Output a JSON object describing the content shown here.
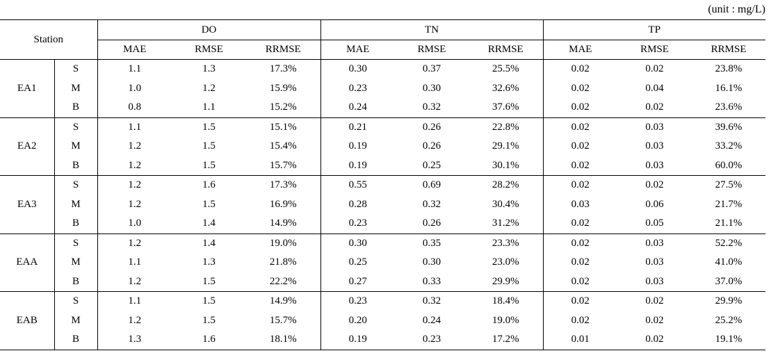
{
  "unit_note": "(unit : mg/L)",
  "table": {
    "header": {
      "station": "Station",
      "groups": [
        "DO",
        "TN",
        "TP"
      ],
      "metrics": [
        [
          "MAE",
          "RMSE",
          "RRMSE"
        ],
        [
          "MAE",
          "RMSE",
          "RRMSE"
        ],
        [
          "MAE",
          "RMSE",
          "RRMSE"
        ]
      ]
    },
    "rows": [
      {
        "station": "EA1",
        "layers": [
          {
            "layer": "S",
            "cells": [
              "1.1",
              "1.3",
              "17.3%",
              "0.30",
              "0.37",
              "25.5%",
              "0.02",
              "0.02",
              "23.8%"
            ]
          },
          {
            "layer": "M",
            "cells": [
              "1.0",
              "1.2",
              "15.9%",
              "0.23",
              "0.30",
              "32.6%",
              "0.02",
              "0.04",
              "16.1%"
            ]
          },
          {
            "layer": "B",
            "cells": [
              "0.8",
              "1.1",
              "15.2%",
              "0.24",
              "0.32",
              "37.6%",
              "0.02",
              "0.02",
              "23.6%"
            ]
          }
        ]
      },
      {
        "station": "EA2",
        "layers": [
          {
            "layer": "S",
            "cells": [
              "1.1",
              "1.5",
              "15.1%",
              "0.21",
              "0.26",
              "22.8%",
              "0.02",
              "0.03",
              "39.6%"
            ]
          },
          {
            "layer": "M",
            "cells": [
              "1.2",
              "1.5",
              "15.4%",
              "0.19",
              "0.26",
              "29.1%",
              "0.02",
              "0.03",
              "33.2%"
            ]
          },
          {
            "layer": "B",
            "cells": [
              "1.2",
              "1.5",
              "15.7%",
              "0.19",
              "0.25",
              "30.1%",
              "0.02",
              "0.03",
              "60.0%"
            ]
          }
        ]
      },
      {
        "station": "EA3",
        "layers": [
          {
            "layer": "S",
            "cells": [
              "1.2",
              "1.6",
              "17.3%",
              "0.55",
              "0.69",
              "28.2%",
              "0.02",
              "0.02",
              "27.5%"
            ]
          },
          {
            "layer": "M",
            "cells": [
              "1.2",
              "1.5",
              "16.9%",
              "0.28",
              "0.32",
              "30.4%",
              "0.03",
              "0.06",
              "21.7%"
            ]
          },
          {
            "layer": "B",
            "cells": [
              "1.0",
              "1.4",
              "14.9%",
              "0.23",
              "0.26",
              "31.2%",
              "0.02",
              "0.05",
              "21.1%"
            ]
          }
        ]
      },
      {
        "station": "EAA",
        "layers": [
          {
            "layer": "S",
            "cells": [
              "1.2",
              "1.4",
              "19.0%",
              "0.30",
              "0.35",
              "23.3%",
              "0.02",
              "0.03",
              "52.2%"
            ]
          },
          {
            "layer": "M",
            "cells": [
              "1.1",
              "1.3",
              "21.8%",
              "0.25",
              "0.30",
              "23.0%",
              "0.02",
              "0.03",
              "41.0%"
            ]
          },
          {
            "layer": "B",
            "cells": [
              "1.2",
              "1.5",
              "22.2%",
              "0.27",
              "0.33",
              "29.9%",
              "0.02",
              "0.03",
              "37.0%"
            ]
          }
        ]
      },
      {
        "station": "EAB",
        "layers": [
          {
            "layer": "S",
            "cells": [
              "1.1",
              "1.5",
              "14.9%",
              "0.23",
              "0.32",
              "18.4%",
              "0.02",
              "0.02",
              "29.9%"
            ]
          },
          {
            "layer": "M",
            "cells": [
              "1.2",
              "1.5",
              "15.7%",
              "0.20",
              "0.24",
              "19.0%",
              "0.02",
              "0.02",
              "25.2%"
            ]
          },
          {
            "layer": "B",
            "cells": [
              "1.3",
              "1.6",
              "18.1%",
              "0.19",
              "0.23",
              "17.2%",
              "0.01",
              "0.02",
              "19.1%"
            ]
          }
        ]
      }
    ]
  }
}
